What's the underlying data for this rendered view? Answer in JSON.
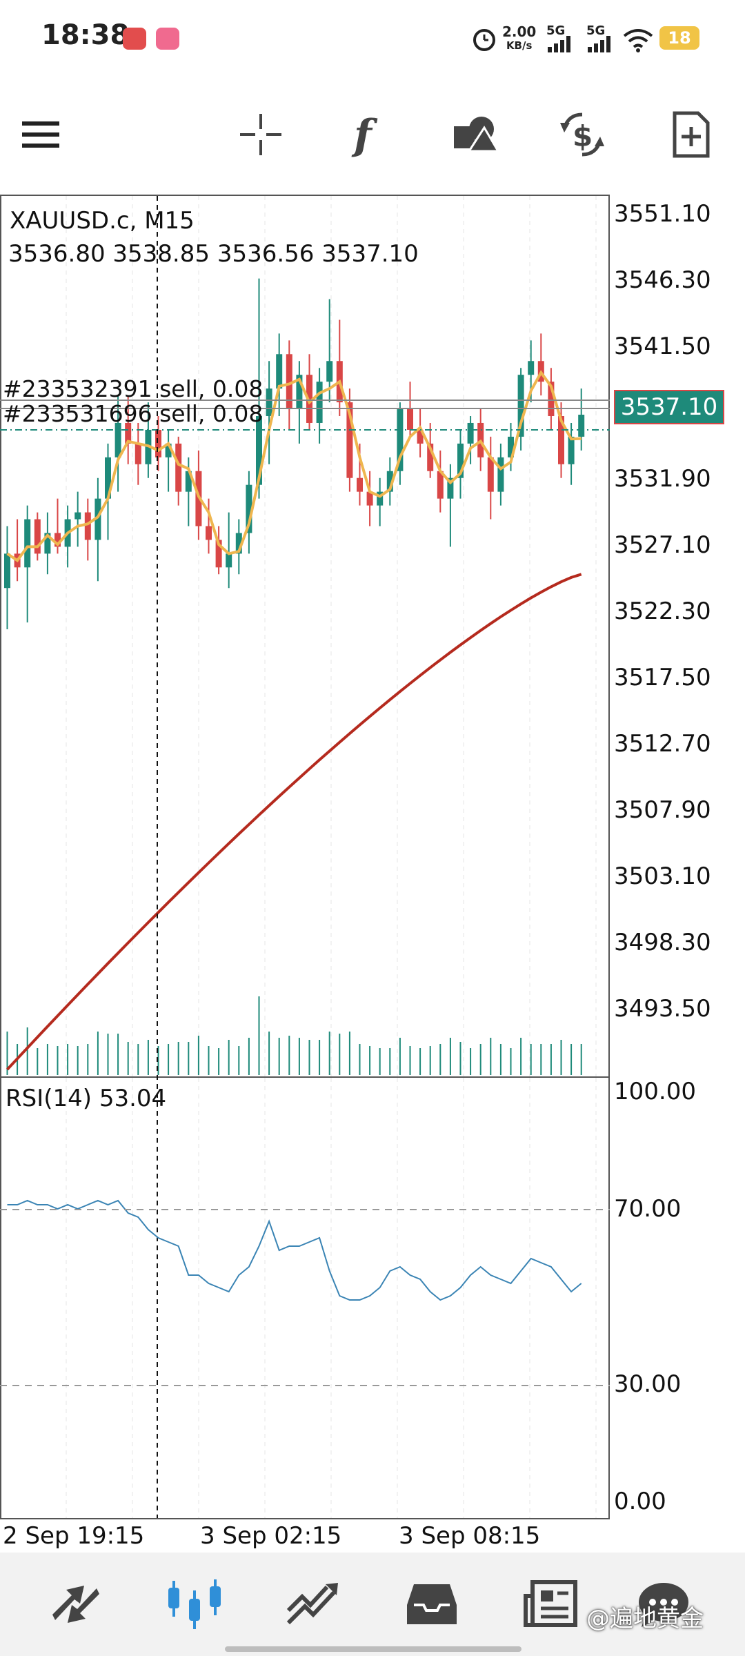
{
  "status_bar": {
    "time": "18:38",
    "net_speed_value": "2.00",
    "net_speed_unit": "KB/s",
    "sim1": "5G",
    "sim2": "5G",
    "battery": "18"
  },
  "toolbar": {
    "icons": [
      "menu-icon",
      "crosshair-icon",
      "indicators-icon",
      "objects-icon",
      "dollar-icon",
      "new-order-icon"
    ]
  },
  "chart": {
    "symbol": "XAUUSD.c, M15",
    "ohlc": "3536.80 3538.85 3536.56 3537.10",
    "current_price": "3537.10",
    "orders": [
      {
        "label": "#233532391 sell, 0.08"
      },
      {
        "label": "#233531696 sell, 0.08"
      }
    ],
    "price_axis": [
      "3551.10",
      "3546.30",
      "3541.50",
      "3537.10",
      "3531.90",
      "3527.10",
      "3522.30",
      "3517.50",
      "3512.70",
      "3507.90",
      "3503.10",
      "3498.30",
      "3493.50"
    ],
    "time_axis": [
      "2 Sep 19:15",
      "3 Sep 02:15",
      "3 Sep 08:15"
    ],
    "rsi_label": "RSI(14) 53.04",
    "rsi_axis": [
      "100.00",
      "70.00",
      "30.00",
      "0.00"
    ],
    "colors": {
      "bull": "#1e8a7a",
      "bear": "#d94646",
      "ma_fast": "#efb64f",
      "ma_slow": "#b52a1e",
      "rsi": "#3a84b4"
    }
  },
  "chart_data": {
    "type": "candlestick",
    "symbol": "XAUUSD.c",
    "timeframe": "M15",
    "ylim": [
      3489.0,
      3553.0
    ],
    "candles": [
      [
        3524.5,
        3529.0,
        3521.5,
        3527.0
      ],
      [
        3527.0,
        3529.5,
        3525.0,
        3526.0
      ],
      [
        3526.0,
        3530.5,
        3522.0,
        3529.5
      ],
      [
        3529.5,
        3530.0,
        3526.5,
        3527.0
      ],
      [
        3527.0,
        3530.0,
        3525.5,
        3528.5
      ],
      [
        3528.5,
        3531.0,
        3527.0,
        3527.5
      ],
      [
        3527.5,
        3530.5,
        3526.0,
        3529.5
      ],
      [
        3529.5,
        3531.5,
        3527.5,
        3530.0
      ],
      [
        3530.0,
        3531.0,
        3526.5,
        3528.0
      ],
      [
        3528.0,
        3532.5,
        3525.0,
        3531.0
      ],
      [
        3531.0,
        3535.0,
        3528.0,
        3534.0
      ],
      [
        3534.0,
        3538.5,
        3531.5,
        3536.5
      ],
      [
        3536.5,
        3538.5,
        3533.5,
        3535.0
      ],
      [
        3535.0,
        3536.5,
        3532.0,
        3533.5
      ],
      [
        3533.5,
        3538.0,
        3532.5,
        3536.0
      ],
      [
        3536.0,
        3537.0,
        3533.0,
        3534.0
      ],
      [
        3534.0,
        3536.0,
        3531.5,
        3535.0
      ],
      [
        3535.0,
        3535.5,
        3530.5,
        3531.5
      ],
      [
        3531.5,
        3534.0,
        3529.0,
        3533.0
      ],
      [
        3533.0,
        3534.5,
        3528.0,
        3529.0
      ],
      [
        3529.0,
        3531.0,
        3527.0,
        3528.0
      ],
      [
        3528.0,
        3529.0,
        3525.5,
        3526.0
      ],
      [
        3526.0,
        3530.0,
        3524.5,
        3527.0
      ],
      [
        3527.0,
        3529.5,
        3525.5,
        3528.5
      ],
      [
        3528.5,
        3533.0,
        3527.0,
        3532.0
      ],
      [
        3532.0,
        3547.0,
        3531.0,
        3537.0
      ],
      [
        3537.0,
        3541.0,
        3533.5,
        3539.0
      ],
      [
        3539.0,
        3543.0,
        3537.0,
        3541.5
      ],
      [
        3541.5,
        3542.5,
        3536.0,
        3537.5
      ],
      [
        3537.5,
        3541.0,
        3535.0,
        3540.0
      ],
      [
        3540.0,
        3541.5,
        3536.0,
        3536.5
      ],
      [
        3536.5,
        3540.5,
        3535.0,
        3539.5
      ],
      [
        3539.5,
        3545.5,
        3538.0,
        3541.0
      ],
      [
        3541.0,
        3544.0,
        3537.0,
        3538.0
      ],
      [
        3538.0,
        3539.0,
        3531.5,
        3532.5
      ],
      [
        3532.5,
        3535.0,
        3530.5,
        3531.5
      ],
      [
        3531.5,
        3533.0,
        3529.0,
        3530.5
      ],
      [
        3530.5,
        3532.5,
        3529.0,
        3531.5
      ],
      [
        3531.5,
        3534.0,
        3530.5,
        3533.0
      ],
      [
        3533.0,
        3538.0,
        3532.0,
        3537.5
      ],
      [
        3537.5,
        3539.5,
        3535.5,
        3536.0
      ],
      [
        3536.0,
        3537.5,
        3534.0,
        3535.0
      ],
      [
        3535.0,
        3536.5,
        3532.5,
        3533.0
      ],
      [
        3533.0,
        3534.5,
        3530.0,
        3531.0
      ],
      [
        3531.0,
        3533.5,
        3527.5,
        3532.5
      ],
      [
        3532.5,
        3536.0,
        3531.0,
        3535.0
      ],
      [
        3535.0,
        3537.0,
        3533.5,
        3536.5
      ],
      [
        3536.5,
        3537.5,
        3533.0,
        3534.0
      ],
      [
        3534.0,
        3535.5,
        3529.5,
        3531.5
      ],
      [
        3531.5,
        3535.0,
        3530.5,
        3534.0
      ],
      [
        3534.0,
        3536.5,
        3533.0,
        3535.5
      ],
      [
        3535.5,
        3540.5,
        3534.5,
        3540.0
      ],
      [
        3540.0,
        3542.5,
        3538.0,
        3541.0
      ],
      [
        3541.0,
        3543.0,
        3538.5,
        3539.5
      ],
      [
        3539.5,
        3540.5,
        3536.0,
        3537.0
      ],
      [
        3537.0,
        3538.0,
        3532.5,
        3533.5
      ],
      [
        3533.5,
        3536.5,
        3532.0,
        3535.5
      ],
      [
        3535.5,
        3539.0,
        3534.5,
        3537.1
      ]
    ],
    "ma_slow_endpoints": [
      [
        0,
        3489.5
      ],
      [
        57,
        3525.5
      ]
    ],
    "rsi": [
      72,
      72,
      73,
      72,
      72,
      71,
      72,
      71,
      72,
      73,
      72,
      73,
      70,
      69,
      66,
      64,
      63,
      62,
      55,
      55,
      53,
      52,
      51,
      55,
      57,
      62,
      68,
      61,
      62,
      62,
      63,
      64,
      56,
      50,
      49,
      49,
      50,
      52,
      56,
      57,
      55,
      54,
      51,
      49,
      50,
      52,
      55,
      57,
      55,
      54,
      53,
      56,
      59,
      58,
      57,
      54,
      51,
      53
    ]
  },
  "bottom_nav": {
    "items": [
      "quotes-icon",
      "chart-icon",
      "trade-icon",
      "history-icon",
      "news-icon",
      "messages-icon"
    ],
    "watermark": "@遍地黄金"
  }
}
